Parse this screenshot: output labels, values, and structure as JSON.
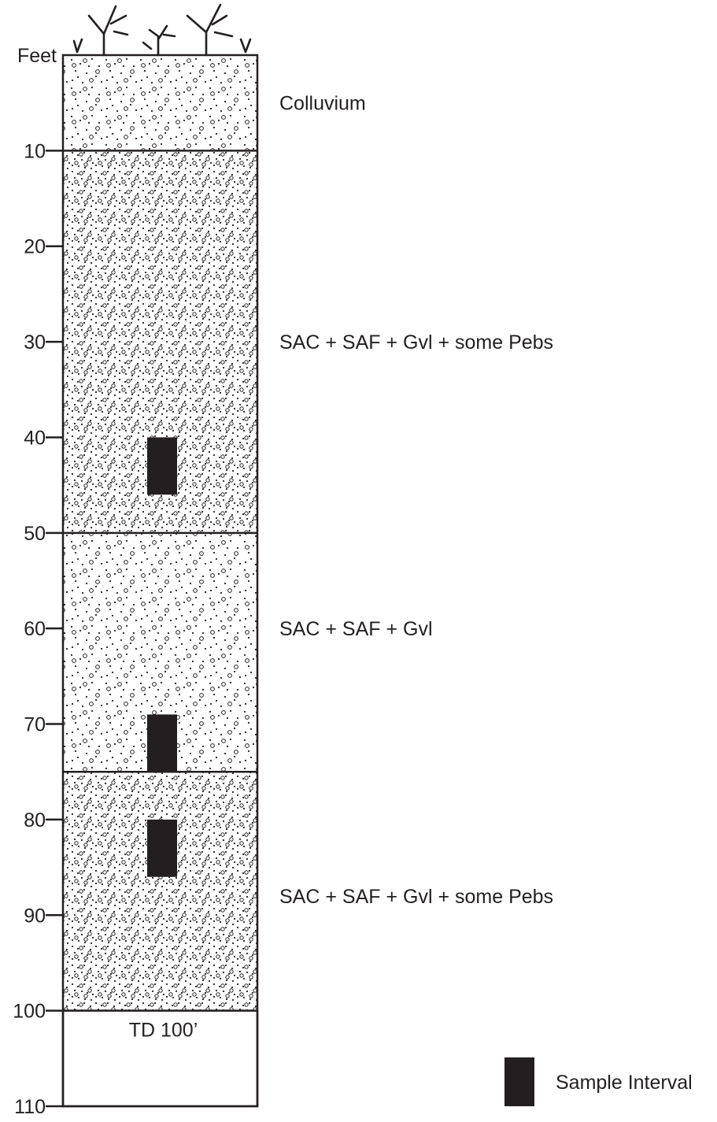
{
  "units": "Feet",
  "depth_axis": {
    "min": 0,
    "max": 110,
    "ticks": [
      10,
      20,
      30,
      40,
      50,
      60,
      70,
      80,
      90,
      100,
      110
    ]
  },
  "layers": [
    {
      "top": 0,
      "bottom": 10,
      "label": "Colluvium",
      "label_depth": 5,
      "pattern": "sparse"
    },
    {
      "top": 10,
      "bottom": 50,
      "label": "SAC + SAF + Gvl + some Pebs",
      "label_depth": 30,
      "pattern": "dense"
    },
    {
      "top": 50,
      "bottom": 75,
      "label": "SAC + SAF + Gvl",
      "label_depth": 60,
      "pattern": "sparse"
    },
    {
      "top": 75,
      "bottom": 100,
      "label": "SAC + SAF + Gvl + some Pebs",
      "label_depth": 88,
      "pattern": "dense"
    }
  ],
  "sample_intervals": [
    {
      "top": 40,
      "bottom": 46
    },
    {
      "top": 69,
      "bottom": 75
    },
    {
      "top": 80,
      "bottom": 86
    }
  ],
  "total_depth": {
    "value": 100,
    "label": "TD 100’"
  },
  "legend": {
    "sample_label": "Sample Interval"
  },
  "colors": {
    "ink": "#231f20",
    "sample_fill": "#231f20",
    "background": "#ffffff"
  }
}
